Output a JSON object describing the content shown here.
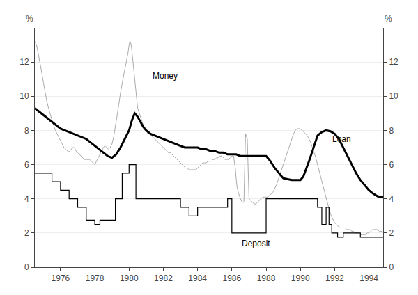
{
  "chart_data": {
    "type": "line",
    "ylabel": "%",
    "y2label": "%",
    "xlim": [
      1974.5,
      1994.83
    ],
    "xticks": [
      1976,
      1978,
      1980,
      1982,
      1984,
      1986,
      1988,
      1990,
      1992,
      1994
    ],
    "ylim": [
      0,
      14
    ],
    "yticks": [
      0,
      2,
      4,
      6,
      8,
      10,
      12
    ],
    "y2lim": [
      0,
      14
    ],
    "y2ticks": [
      0,
      2,
      4,
      6,
      8,
      10,
      12
    ],
    "grid": true,
    "annotations": [
      {
        "text": "Money",
        "x": 1981.3,
        "y": 11.2
      },
      {
        "text": "Loan",
        "x": 1991.8,
        "y": 7.5
      },
      {
        "text": "Deposit",
        "x": 1986.5,
        "y": 1.4
      }
    ],
    "series": [
      {
        "color": "#aaaaaa",
        "x": [
          1974.5,
          1974.6,
          1974.7,
          1974.8,
          1974.9,
          1975.0,
          1975.1,
          1975.2,
          1975.3,
          1975.4,
          1975.5,
          1975.6,
          1975.7,
          1975.8,
          1975.9,
          1976.0,
          1976.1,
          1976.2,
          1976.3,
          1976.4,
          1976.5,
          1976.6,
          1976.7,
          1976.8,
          1976.9,
          1977.0,
          1977.1,
          1977.2,
          1977.3,
          1977.4,
          1977.5,
          1977.6,
          1977.7,
          1977.8,
          1977.9,
          1978.0,
          1978.1,
          1978.2,
          1978.3,
          1978.4,
          1978.5,
          1978.6,
          1978.7,
          1978.8,
          1978.9,
          1979.0,
          1979.1,
          1979.2,
          1979.3,
          1979.4,
          1979.5,
          1979.6,
          1979.7,
          1979.8,
          1979.9,
          1979.95,
          1980.0,
          1980.05,
          1980.1,
          1980.15,
          1980.2,
          1980.25,
          1980.3,
          1980.35,
          1980.4,
          1980.45,
          1980.5,
          1980.6,
          1980.7,
          1980.8,
          1980.9,
          1981.0,
          1981.1,
          1981.2,
          1981.3,
          1981.4,
          1981.5,
          1981.6,
          1981.7,
          1981.8,
          1981.9,
          1982.0,
          1982.1,
          1982.2,
          1982.3,
          1982.4,
          1982.5,
          1982.6,
          1982.7,
          1982.8,
          1982.9,
          1983.0,
          1983.1,
          1983.2,
          1983.3,
          1983.4,
          1983.5,
          1983.6,
          1983.7,
          1983.8,
          1983.9,
          1984.0,
          1984.1,
          1984.2,
          1984.3,
          1984.4,
          1984.5,
          1984.6,
          1984.7,
          1984.8,
          1984.9,
          1985.0,
          1985.1,
          1985.2,
          1985.3,
          1985.4,
          1985.5,
          1985.6,
          1985.7,
          1985.8,
          1985.9,
          1986.0,
          1986.1,
          1986.15,
          1986.2,
          1986.25,
          1986.3,
          1986.4,
          1986.5,
          1986.6,
          1986.7,
          1986.8,
          1986.9,
          1987.0,
          1987.1,
          1987.2,
          1987.3,
          1987.4,
          1987.5,
          1987.6,
          1987.7,
          1987.8,
          1987.9,
          1988.0,
          1988.1,
          1988.2,
          1988.3,
          1988.4,
          1988.5,
          1988.6,
          1988.7,
          1988.8,
          1988.9,
          1989.0,
          1989.1,
          1989.2,
          1989.3,
          1989.4,
          1989.5,
          1989.6,
          1989.7,
          1989.8,
          1989.9,
          1990.0,
          1990.1,
          1990.2,
          1990.3,
          1990.4,
          1990.5,
          1990.6,
          1990.7,
          1990.8,
          1990.9,
          1991.0,
          1991.1,
          1991.2,
          1991.3,
          1991.4,
          1991.5,
          1991.6,
          1991.7,
          1991.8,
          1991.9,
          1992.0,
          1992.1,
          1992.2,
          1992.3,
          1992.4,
          1992.5,
          1992.6,
          1992.7,
          1992.8,
          1992.9,
          1993.0,
          1993.1,
          1993.2,
          1993.3,
          1993.4,
          1993.5,
          1993.6,
          1993.7,
          1993.8,
          1993.9,
          1994.0,
          1994.1,
          1994.2,
          1994.3,
          1994.4,
          1994.5,
          1994.6,
          1994.7,
          1994.8
        ],
        "values": [
          13.2,
          13.0,
          12.5,
          12.0,
          11.4,
          10.8,
          10.2,
          9.7,
          9.3,
          8.9,
          8.6,
          8.3,
          8.0,
          7.8,
          7.6,
          7.4,
          7.2,
          7.0,
          6.9,
          6.8,
          6.75,
          6.9,
          7.0,
          7.0,
          6.8,
          6.7,
          6.6,
          6.5,
          6.4,
          6.3,
          6.3,
          6.3,
          6.3,
          6.2,
          6.1,
          6.0,
          6.2,
          6.4,
          6.6,
          6.8,
          7.0,
          7.1,
          7.0,
          6.9,
          7.0,
          7.2,
          7.6,
          8.2,
          8.8,
          9.5,
          10.2,
          10.8,
          11.3,
          11.8,
          12.3,
          12.6,
          13.0,
          13.2,
          13.1,
          12.8,
          12.3,
          11.8,
          11.3,
          10.8,
          10.3,
          9.8,
          9.3,
          9.0,
          8.7,
          8.4,
          8.2,
          8.0,
          7.8,
          7.8,
          7.7,
          7.6,
          7.5,
          7.4,
          7.3,
          7.2,
          7.1,
          7.0,
          6.9,
          6.8,
          6.7,
          6.7,
          6.6,
          6.5,
          6.4,
          6.3,
          6.2,
          6.1,
          6.0,
          5.9,
          5.8,
          5.8,
          5.7,
          5.7,
          5.7,
          5.7,
          5.7,
          5.8,
          5.9,
          6.0,
          6.1,
          6.1,
          6.1,
          6.2,
          6.2,
          6.2,
          6.3,
          6.3,
          6.4,
          6.4,
          6.5,
          6.5,
          6.4,
          6.3,
          6.3,
          6.3,
          6.4,
          6.5,
          6.5,
          6.2,
          5.8,
          5.2,
          4.7,
          4.3,
          4.0,
          3.8,
          3.8,
          7.8,
          7.5,
          4.0,
          3.9,
          3.8,
          3.7,
          3.7,
          3.8,
          3.9,
          4.0,
          4.1,
          4.1,
          4.1,
          4.1,
          4.2,
          4.3,
          4.4,
          4.6,
          4.8,
          5.1,
          5.4,
          5.7,
          6.0,
          6.3,
          6.6,
          6.9,
          7.2,
          7.5,
          7.8,
          8.0,
          8.1,
          8.1,
          8.1,
          8.0,
          7.9,
          7.8,
          7.7,
          7.5,
          7.3,
          7.0,
          6.7,
          6.4,
          6.0,
          5.6,
          5.2,
          4.8,
          4.4,
          4.0,
          3.6,
          3.3,
          3.0,
          2.8,
          2.6,
          2.5,
          2.4,
          2.3,
          2.3,
          2.3,
          2.3,
          2.2,
          2.2,
          2.2,
          2.1,
          2.1,
          2.0,
          2.0,
          2.0,
          1.9,
          1.9,
          1.9,
          1.9,
          2.0,
          2.0,
          2.1,
          2.2,
          2.2,
          2.2,
          2.2,
          2.1,
          2.1,
          2.1
        ]
      },
      {
        "color": "#000000",
        "x": [
          1974.5,
          1974.75,
          1975.0,
          1975.25,
          1975.5,
          1975.75,
          1976.0,
          1976.25,
          1976.5,
          1976.75,
          1977.0,
          1977.25,
          1977.5,
          1977.75,
          1978.0,
          1978.25,
          1978.5,
          1978.75,
          1979.0,
          1979.25,
          1979.5,
          1979.75,
          1980.0,
          1980.17,
          1980.33,
          1980.5,
          1980.67,
          1980.83,
          1981.0,
          1981.25,
          1981.5,
          1981.75,
          1982.0,
          1982.25,
          1982.5,
          1982.75,
          1983.0,
          1983.25,
          1983.5,
          1983.75,
          1984.0,
          1984.25,
          1984.5,
          1984.75,
          1985.0,
          1985.25,
          1985.5,
          1985.75,
          1986.0,
          1986.25,
          1986.5,
          1986.75,
          1987.0,
          1987.25,
          1987.5,
          1987.75,
          1988.0,
          1988.25,
          1988.5,
          1988.75,
          1989.0,
          1989.25,
          1989.5,
          1989.75,
          1990.0,
          1990.17,
          1990.33,
          1990.5,
          1990.67,
          1990.83,
          1991.0,
          1991.25,
          1991.5,
          1991.75,
          1992.0,
          1992.25,
          1992.5,
          1992.75,
          1993.0,
          1993.25,
          1993.5,
          1993.75,
          1994.0,
          1994.25,
          1994.5,
          1994.75,
          1994.83
        ],
        "values": [
          9.3,
          9.1,
          8.9,
          8.7,
          8.5,
          8.3,
          8.1,
          8.0,
          7.9,
          7.8,
          7.7,
          7.6,
          7.5,
          7.3,
          7.1,
          6.9,
          6.7,
          6.5,
          6.4,
          6.6,
          7.0,
          7.5,
          8.0,
          8.6,
          9.0,
          8.8,
          8.5,
          8.2,
          8.0,
          7.8,
          7.7,
          7.6,
          7.5,
          7.4,
          7.3,
          7.2,
          7.1,
          7.0,
          7.0,
          7.0,
          7.0,
          6.9,
          6.9,
          6.8,
          6.8,
          6.7,
          6.7,
          6.6,
          6.6,
          6.6,
          6.5,
          6.5,
          6.5,
          6.5,
          6.5,
          6.5,
          6.5,
          6.2,
          5.8,
          5.5,
          5.2,
          5.15,
          5.1,
          5.1,
          5.1,
          5.3,
          5.7,
          6.2,
          6.7,
          7.2,
          7.7,
          7.9,
          8.0,
          7.95,
          7.8,
          7.5,
          7.0,
          6.5,
          6.0,
          5.5,
          5.1,
          4.8,
          4.5,
          4.3,
          4.15,
          4.1,
          4.1
        ]
      },
      {
        "color": "#000000",
        "x": [
          1974.5,
          1975.5,
          1975.5,
          1976.0,
          1976.0,
          1976.5,
          1976.5,
          1977.0,
          1977.0,
          1977.5,
          1977.5,
          1978.0,
          1978.0,
          1978.3,
          1978.3,
          1979.2,
          1979.2,
          1979.6,
          1979.6,
          1980.0,
          1980.0,
          1980.4,
          1980.4,
          1983.0,
          1983.0,
          1983.5,
          1983.5,
          1984.0,
          1984.0,
          1985.75,
          1985.75,
          1986.0,
          1986.0,
          1986.17,
          1986.17,
          1987.5,
          1987.5,
          1988.0,
          1988.0,
          1989.0,
          1989.0,
          1989.5,
          1989.5,
          1990.0,
          1990.0,
          1990.5,
          1990.5,
          1991.0,
          1991.0,
          1991.25,
          1991.25,
          1991.5,
          1991.5,
          1991.67,
          1991.67,
          1991.83,
          1991.83,
          1992.17,
          1992.17,
          1992.5,
          1992.5,
          1993.5,
          1993.5,
          1994.83
        ],
        "values": [
          5.5,
          5.5,
          5.0,
          5.0,
          4.5,
          4.5,
          4.0,
          4.0,
          3.5,
          3.5,
          2.75,
          2.75,
          2.5,
          2.5,
          2.75,
          2.75,
          4.0,
          4.0,
          5.5,
          5.5,
          6.0,
          6.0,
          4.0,
          4.0,
          3.5,
          3.5,
          3.0,
          3.0,
          3.5,
          3.5,
          4.0,
          4.0,
          2.0,
          2.0,
          2.0,
          2.0,
          2.0,
          2.0,
          4.0,
          4.0,
          4.0,
          4.0,
          4.0,
          4.0,
          4.0,
          4.0,
          4.0,
          4.0,
          3.5,
          3.5,
          2.5,
          2.5,
          3.5,
          3.5,
          2.5,
          2.5,
          2.0,
          2.0,
          1.75,
          1.75,
          2.0,
          2.0,
          1.75,
          1.75
        ]
      }
    ]
  }
}
